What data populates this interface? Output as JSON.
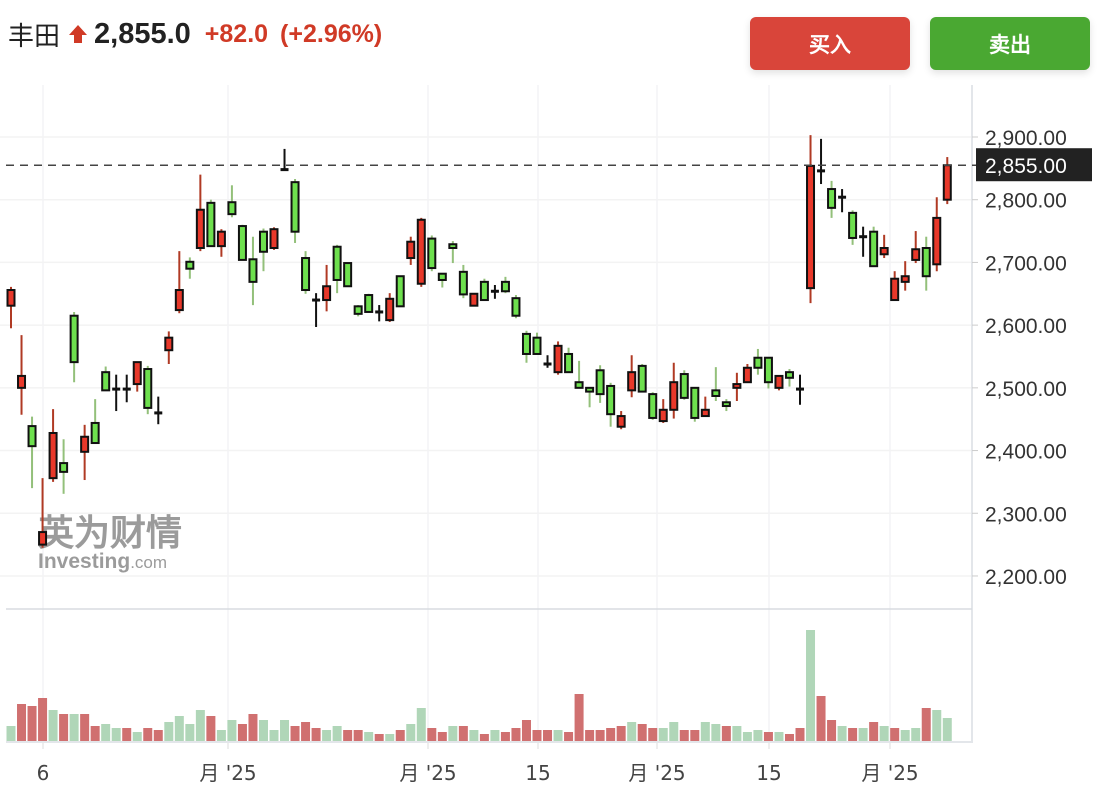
{
  "header": {
    "name": "丰田",
    "direction_icon": "arrow-up-icon",
    "price": "2,855.0",
    "change": "+82.0",
    "change_pct": "(+2.96%)",
    "up_color": "#d03a26"
  },
  "actions": {
    "buy_label": "买入",
    "sell_label": "卖出",
    "buy_color": "#d9453a",
    "sell_color": "#4aa832"
  },
  "watermark": {
    "brand_cn": "英为财情",
    "brand_en": "Investing",
    "brand_suffix": ".com"
  },
  "chart_data": {
    "type": "candlestick",
    "ylim": [
      2130,
      2990
    ],
    "y_ticks": [
      "2,900.00",
      "2,800.00",
      "2,700.00",
      "2,600.00",
      "2,500.00",
      "2,400.00",
      "2,300.00",
      "2,200.00"
    ],
    "y_tick_values": [
      2900,
      2800,
      2700,
      2600,
      2500,
      2400,
      2300,
      2200
    ],
    "current_price": 2855,
    "current_price_label": "2,855.00",
    "x_ticks": [
      "6",
      "月 '25",
      "月 '25",
      "15",
      "月 '25",
      "15",
      "月 '25"
    ],
    "grid": true,
    "colors": {
      "up": "#e8382a",
      "down": "#6ee04e",
      "up_wick": "#b03a24",
      "down_wick": "#93c07a",
      "vol_red": "#d07070",
      "vol_green": "#b0d6b8"
    },
    "ohlc": [
      [
        2631,
        2661,
        2595,
        2656
      ],
      [
        2500,
        2584,
        2457,
        2519
      ],
      [
        2439,
        2454,
        2340,
        2407
      ],
      [
        2250,
        2356,
        2245,
        2270
      ],
      [
        2356,
        2466,
        2350,
        2428
      ],
      [
        2380,
        2418,
        2331,
        2366
      ],
      [
        2615,
        2621,
        2509,
        2541
      ],
      [
        2398,
        2441,
        2353,
        2422
      ],
      [
        2444,
        2482,
        2411,
        2412
      ],
      [
        2525,
        2534,
        2496,
        2496
      ],
      [
        2498,
        2521,
        2463,
        2498
      ],
      [
        2498,
        2521,
        2477,
        2498
      ],
      [
        2506,
        2541,
        2494,
        2541
      ],
      [
        2530,
        2535,
        2458,
        2468
      ],
      [
        2460,
        2486,
        2442,
        2460
      ],
      [
        2560,
        2590,
        2538,
        2580
      ],
      [
        2624,
        2718,
        2619,
        2656
      ],
      [
        2701,
        2708,
        2674,
        2690
      ],
      [
        2723,
        2840,
        2718,
        2784
      ],
      [
        2795,
        2800,
        2726,
        2726
      ],
      [
        2726,
        2753,
        2709,
        2749
      ],
      [
        2796,
        2823,
        2772,
        2777
      ],
      [
        2758,
        2760,
        2704,
        2704
      ],
      [
        2705,
        2741,
        2632,
        2669
      ],
      [
        2749,
        2754,
        2686,
        2717
      ],
      [
        2723,
        2756,
        2720,
        2753
      ],
      [
        2848,
        2881,
        2847,
        2848
      ],
      [
        2828,
        2833,
        2731,
        2749
      ],
      [
        2707,
        2718,
        2650,
        2656
      ],
      [
        2640,
        2651,
        2597,
        2640
      ],
      [
        2640,
        2696,
        2622,
        2662
      ],
      [
        2725,
        2728,
        2651,
        2672
      ],
      [
        2699,
        2699,
        2662,
        2662
      ],
      [
        2630,
        2632,
        2614,
        2618
      ],
      [
        2648,
        2650,
        2620,
        2621
      ],
      [
        2621,
        2632,
        2606,
        2621
      ],
      [
        2608,
        2651,
        2605,
        2642
      ],
      [
        2678,
        2678,
        2630,
        2630
      ],
      [
        2707,
        2741,
        2696,
        2733
      ],
      [
        2666,
        2771,
        2661,
        2768
      ],
      [
        2738,
        2743,
        2686,
        2691
      ],
      [
        2682,
        2682,
        2660,
        2672
      ],
      [
        2729,
        2734,
        2699,
        2723
      ],
      [
        2685,
        2696,
        2643,
        2649
      ],
      [
        2631,
        2650,
        2631,
        2650
      ],
      [
        2669,
        2674,
        2640,
        2640
      ],
      [
        2654,
        2664,
        2642,
        2654
      ],
      [
        2669,
        2677,
        2651,
        2654
      ],
      [
        2643,
        2648,
        2611,
        2615
      ],
      [
        2586,
        2591,
        2540,
        2554
      ],
      [
        2580,
        2588,
        2554,
        2554
      ],
      [
        2538,
        2552,
        2532,
        2538
      ],
      [
        2525,
        2574,
        2521,
        2567
      ],
      [
        2554,
        2564,
        2525,
        2525
      ],
      [
        2509,
        2543,
        2500,
        2500
      ],
      [
        2500,
        2500,
        2469,
        2494
      ],
      [
        2528,
        2536,
        2476,
        2490
      ],
      [
        2503,
        2508,
        2438,
        2458
      ],
      [
        2438,
        2463,
        2434,
        2455
      ],
      [
        2496,
        2552,
        2485,
        2525
      ],
      [
        2535,
        2538,
        2494,
        2494
      ],
      [
        2490,
        2493,
        2449,
        2452
      ],
      [
        2447,
        2482,
        2444,
        2465
      ],
      [
        2465,
        2540,
        2451,
        2509
      ],
      [
        2522,
        2528,
        2481,
        2484
      ],
      [
        2500,
        2500,
        2446,
        2452
      ],
      [
        2455,
        2486,
        2455,
        2465
      ],
      [
        2496,
        2533,
        2479,
        2487
      ],
      [
        2477,
        2482,
        2463,
        2471
      ],
      [
        2500,
        2524,
        2479,
        2506
      ],
      [
        2509,
        2538,
        2509,
        2532
      ],
      [
        2548,
        2562,
        2521,
        2532
      ],
      [
        2548,
        2548,
        2499,
        2509
      ],
      [
        2500,
        2519,
        2496,
        2519
      ],
      [
        2525,
        2530,
        2502,
        2516
      ],
      [
        2498,
        2521,
        2473,
        2498
      ],
      [
        2659,
        2903,
        2635,
        2854
      ],
      [
        2846,
        2897,
        2825,
        2846
      ],
      [
        2817,
        2830,
        2771,
        2787
      ],
      [
        2804,
        2817,
        2780,
        2804
      ],
      [
        2779,
        2783,
        2728,
        2739
      ],
      [
        2741,
        2757,
        2709,
        2741
      ],
      [
        2749,
        2757,
        2694,
        2694
      ],
      [
        2713,
        2744,
        2707,
        2723
      ],
      [
        2640,
        2686,
        2640,
        2674
      ],
      [
        2669,
        2702,
        2655,
        2678
      ],
      [
        2704,
        2750,
        2699,
        2721
      ],
      [
        2723,
        2741,
        2655,
        2678
      ],
      [
        2697,
        2804,
        2686,
        2771
      ],
      [
        2800,
        2868,
        2793,
        2855
      ]
    ],
    "volume_relative": [
      15,
      37,
      35,
      43,
      31,
      27,
      27,
      27,
      15,
      17,
      13,
      13,
      9,
      13,
      11,
      19,
      25,
      17,
      31,
      25,
      11,
      21,
      17,
      27,
      21,
      11,
      21,
      15,
      19,
      13,
      11,
      15,
      11,
      11,
      9,
      7,
      7,
      11,
      17,
      33,
      13,
      9,
      15,
      15,
      11,
      7,
      11,
      9,
      13,
      21,
      11,
      11,
      11,
      9,
      47,
      11,
      11,
      13,
      15,
      19,
      17,
      13,
      13,
      19,
      11,
      11,
      19,
      17,
      15,
      15,
      9,
      11,
      9,
      9,
      7,
      13,
      111,
      45,
      21,
      15,
      13,
      13,
      19,
      15,
      13,
      11,
      13,
      33,
      31,
      23
    ],
    "volume_colors": [
      "g",
      "r",
      "r",
      "r",
      "g",
      "r",
      "g",
      "r",
      "r",
      "g",
      "g",
      "r",
      "g",
      "r",
      "r",
      "g",
      "g",
      "g",
      "g",
      "r",
      "g",
      "g",
      "r",
      "r",
      "g",
      "g",
      "g",
      "r",
      "r",
      "r",
      "g",
      "g",
      "r",
      "r",
      "g",
      "r",
      "g",
      "r",
      "g",
      "g",
      "r",
      "r",
      "g",
      "r",
      "g",
      "r",
      "g",
      "r",
      "r",
      "r",
      "r",
      "r",
      "g",
      "r",
      "r",
      "r",
      "r",
      "r",
      "r",
      "g",
      "r",
      "r",
      "g",
      "g",
      "r",
      "r",
      "g",
      "g",
      "r",
      "g",
      "g",
      "g",
      "r",
      "g",
      "r",
      "r",
      "g",
      "r",
      "r",
      "g",
      "r",
      "g",
      "r",
      "g",
      "r",
      "g",
      "g",
      "r",
      "g",
      "g"
    ]
  }
}
